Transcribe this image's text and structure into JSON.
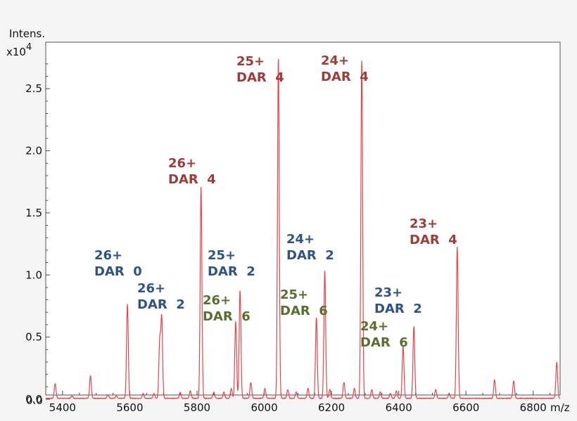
{
  "chart_data": {
    "type": "line",
    "ylabel": "Intens.",
    "y_multiplier": "x10",
    "y_exponent": "4",
    "xunit": "m/z",
    "xlim": [
      5350,
      6880
    ],
    "ylim": [
      0,
      2.75
    ],
    "xticks": [
      5400,
      5600,
      5800,
      6000,
      6200,
      6400,
      6600,
      6800
    ],
    "yticks": [
      "0.0",
      "0.5",
      "1.0",
      "1.5",
      "2.0",
      "2.5"
    ],
    "line_color": "#e8454a",
    "peaks": [
      {
        "x": 5378,
        "y": 0.12
      },
      {
        "x": 5428,
        "y": 0.02
      },
      {
        "x": 5483,
        "y": 0.18
      },
      {
        "x": 5535,
        "y": 0.03
      },
      {
        "x": 5560,
        "y": 0.02
      },
      {
        "x": 5593,
        "y": 0.76
      },
      {
        "x": 5640,
        "y": 0.04
      },
      {
        "x": 5672,
        "y": 0.04
      },
      {
        "x": 5689,
        "y": 0.45
      },
      {
        "x": 5695,
        "y": 0.64
      },
      {
        "x": 5750,
        "y": 0.05
      },
      {
        "x": 5780,
        "y": 0.06
      },
      {
        "x": 5812,
        "y": 1.7
      },
      {
        "x": 5850,
        "y": 0.05
      },
      {
        "x": 5880,
        "y": 0.05
      },
      {
        "x": 5902,
        "y": 0.08
      },
      {
        "x": 5915,
        "y": 0.62
      },
      {
        "x": 5928,
        "y": 0.87
      },
      {
        "x": 5960,
        "y": 0.13
      },
      {
        "x": 6002,
        "y": 0.08
      },
      {
        "x": 6042,
        "y": 2.74
      },
      {
        "x": 6070,
        "y": 0.07
      },
      {
        "x": 6095,
        "y": 0.05
      },
      {
        "x": 6130,
        "y": 0.08
      },
      {
        "x": 6155,
        "y": 0.65
      },
      {
        "x": 6180,
        "y": 1.03
      },
      {
        "x": 6195,
        "y": 0.07
      },
      {
        "x": 6237,
        "y": 0.13
      },
      {
        "x": 6268,
        "y": 0.08
      },
      {
        "x": 6290,
        "y": 2.73
      },
      {
        "x": 6320,
        "y": 0.07
      },
      {
        "x": 6345,
        "y": 0.05
      },
      {
        "x": 6375,
        "y": 0.04
      },
      {
        "x": 6393,
        "y": 0.06
      },
      {
        "x": 6413,
        "y": 0.42
      },
      {
        "x": 6445,
        "y": 0.58
      },
      {
        "x": 6510,
        "y": 0.07
      },
      {
        "x": 6550,
        "y": 0.04
      },
      {
        "x": 6574,
        "y": 1.22
      },
      {
        "x": 6685,
        "y": 0.15
      },
      {
        "x": 6742,
        "y": 0.14
      },
      {
        "x": 6870,
        "y": 0.29
      }
    ],
    "annotations": [
      {
        "line1": "26+",
        "line2": "DAR  0",
        "color": "#2e5487"
      },
      {
        "line1": "26+",
        "line2": "DAR  2",
        "color": "#2e5487"
      },
      {
        "line1": "26+",
        "line2": "DAR  4",
        "color": "#9e3b3b"
      },
      {
        "line1": "25+",
        "line2": "DAR  2",
        "color": "#2e5487"
      },
      {
        "line1": "26+",
        "line2": "DAR  6",
        "color": "#5a6e2f"
      },
      {
        "line1": "25+",
        "line2": "DAR  4",
        "color": "#9e3b3b"
      },
      {
        "line1": "24+",
        "line2": "DAR  2",
        "color": "#2e5487"
      },
      {
        "line1": "25+",
        "line2": "DAR  6",
        "color": "#5a6e2f"
      },
      {
        "line1": "24+",
        "line2": "DAR  4",
        "color": "#9e3b3b"
      },
      {
        "line1": "23+",
        "line2": "DAR  2",
        "color": "#2e5487"
      },
      {
        "line1": "24+",
        "line2": "DAR  6",
        "color": "#5a6e2f"
      },
      {
        "line1": "23+",
        "line2": "DAR  4",
        "color": "#9e3b3b"
      }
    ]
  }
}
